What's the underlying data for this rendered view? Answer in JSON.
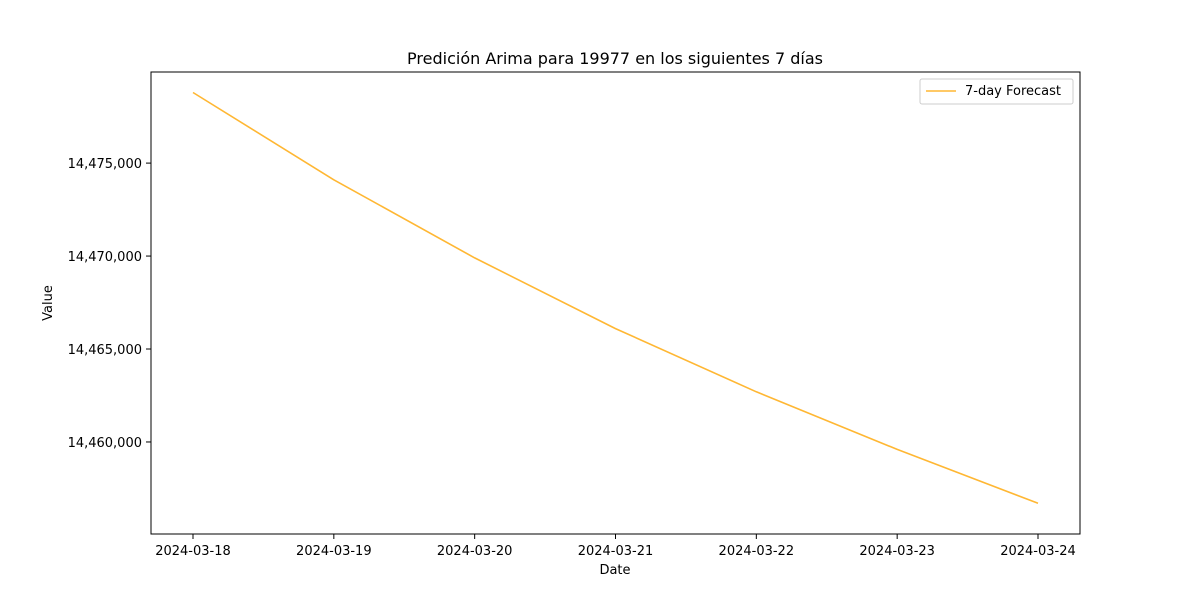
{
  "chart_data": {
    "type": "line",
    "title": "Predición Arima para 19977 en los siguientes 7 días",
    "xlabel": "Date",
    "ylabel": "Value",
    "x": [
      "2024-03-18",
      "2024-03-19",
      "2024-03-20",
      "2024-03-21",
      "2024-03-22",
      "2024-03-23",
      "2024-03-24"
    ],
    "series": [
      {
        "name": "7-day Forecast",
        "color": "#FFB733",
        "values": [
          14478800,
          14474100,
          14469900,
          14466100,
          14462700,
          14459600,
          14456700
        ]
      }
    ],
    "yticks": [
      14460000,
      14465000,
      14470000,
      14475000
    ],
    "ytick_labels": [
      "14,460,000",
      "14,465,000",
      "14,470,000",
      "14,475,000"
    ],
    "ylim": [
      14455050,
      14479900
    ],
    "grid": false,
    "legend_position": "top-right"
  }
}
